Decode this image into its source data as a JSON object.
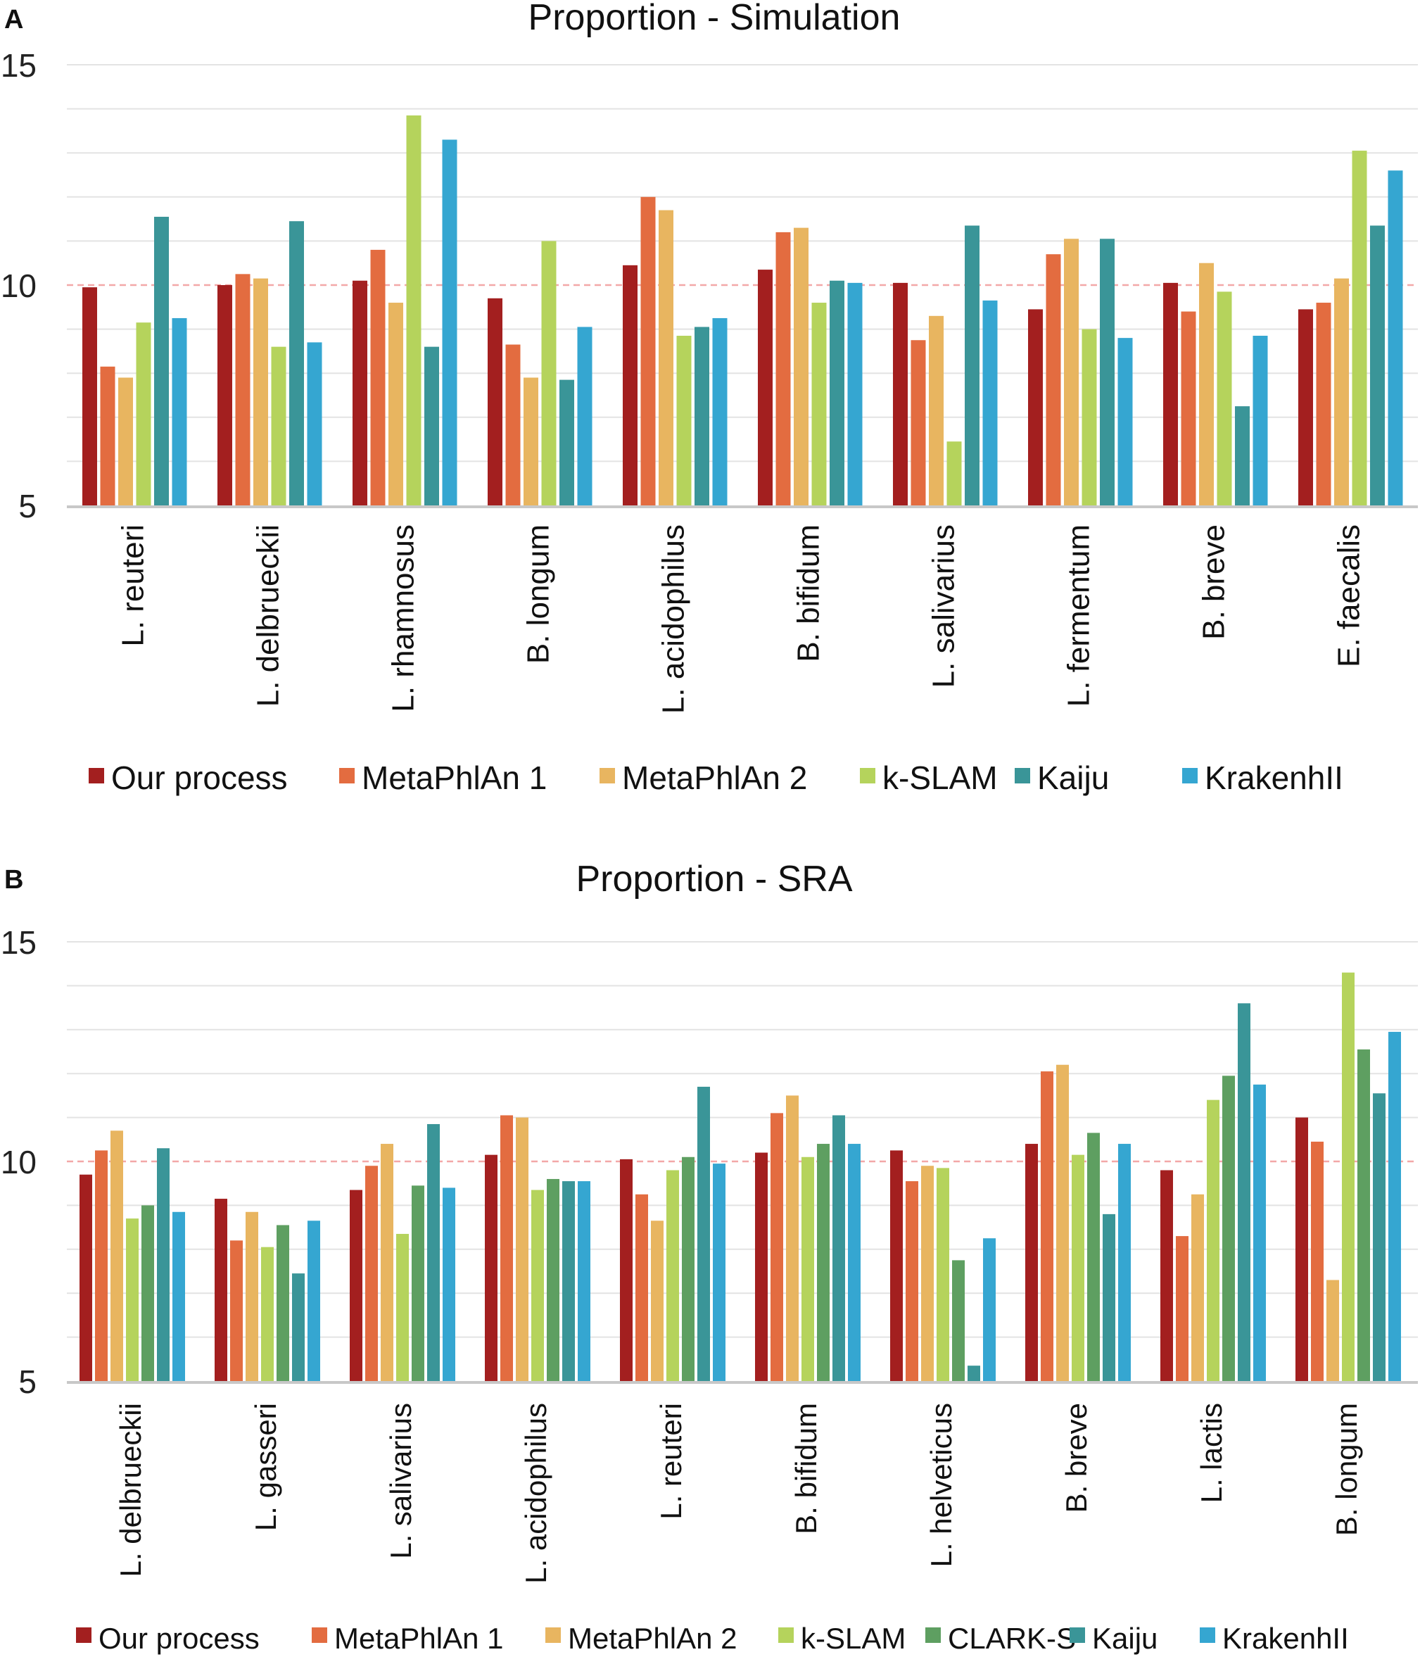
{
  "colors": {
    "series": [
      "#a31f1f",
      "#e36c40",
      "#e8b560",
      "#b5d35c",
      "#5e9f61",
      "#3a9598",
      "#35a6d1"
    ],
    "grid": "#e3e3e3",
    "axis": "#c8c8c8",
    "reference": "#f3a8a8"
  },
  "chart_data": [
    {
      "panel_label": "A",
      "type": "bar",
      "title": "Proportion - Simulation",
      "xlabel": "",
      "ylabel": "",
      "ylim": [
        5,
        15
      ],
      "yticks": [
        5,
        10,
        15
      ],
      "reference_line": 10,
      "grid": true,
      "legend_position": "bottom",
      "categories": [
        "L. reuteri",
        "L. delbrueckii",
        "L. rhamnosus",
        "B. longum",
        "L. acidophilus",
        "B. bifidum",
        "L. salivarius",
        "L. fermentum",
        "B. breve",
        "E. faecalis"
      ],
      "series": [
        {
          "name": "Our process",
          "color_index": 0,
          "values": [
            9.95,
            10.0,
            10.1,
            9.7,
            10.45,
            10.35,
            10.05,
            9.45,
            10.05,
            9.45
          ]
        },
        {
          "name": "MetaPhlAn 1",
          "color_index": 1,
          "values": [
            8.15,
            10.25,
            10.8,
            8.65,
            12.0,
            11.2,
            8.75,
            10.7,
            9.4,
            9.6
          ]
        },
        {
          "name": "MetaPhlAn 2",
          "color_index": 2,
          "values": [
            7.9,
            10.15,
            9.6,
            7.9,
            11.7,
            11.3,
            9.3,
            11.05,
            10.5,
            10.15
          ]
        },
        {
          "name": "k-SLAM",
          "color_index": 3,
          "values": [
            9.15,
            8.6,
            13.85,
            11.0,
            8.85,
            9.6,
            6.45,
            9.0,
            9.85,
            13.05
          ]
        },
        {
          "name": "Kaiju",
          "color_index": 5,
          "values": [
            11.55,
            11.45,
            8.6,
            7.85,
            9.05,
            10.1,
            11.35,
            11.05,
            7.25,
            11.35
          ]
        },
        {
          "name": "KrakenhII",
          "color_index": 6,
          "values": [
            9.25,
            8.7,
            13.3,
            9.05,
            9.25,
            10.05,
            9.65,
            8.8,
            8.85,
            12.6
          ]
        }
      ]
    },
    {
      "panel_label": "B",
      "type": "bar",
      "title": "Proportion - SRA",
      "xlabel": "",
      "ylabel": "",
      "ylim": [
        5,
        15
      ],
      "yticks": [
        5,
        10,
        15
      ],
      "reference_line": 10,
      "grid": true,
      "legend_position": "bottom",
      "categories": [
        "L. delbrueckii",
        "L. gasseri",
        "L. salivarius",
        "L. acidophilus",
        "L. reuteri",
        "B. bifidum",
        "L. helveticus",
        "B. breve",
        "L. lactis",
        "B. longum"
      ],
      "series": [
        {
          "name": "Our process",
          "color_index": 0,
          "values": [
            9.7,
            9.15,
            9.35,
            10.15,
            10.05,
            10.2,
            10.25,
            10.4,
            9.8,
            11.0
          ]
        },
        {
          "name": "MetaPhlAn 1",
          "color_index": 1,
          "values": [
            10.25,
            8.2,
            9.9,
            11.05,
            9.25,
            11.1,
            9.55,
            12.05,
            8.3,
            10.45
          ]
        },
        {
          "name": "MetaPhlAn 2",
          "color_index": 2,
          "values": [
            10.7,
            8.85,
            10.4,
            11.0,
            8.65,
            11.5,
            9.9,
            12.2,
            9.25,
            7.3
          ]
        },
        {
          "name": "k-SLAM",
          "color_index": 3,
          "values": [
            8.7,
            8.05,
            8.35,
            9.35,
            9.8,
            10.1,
            9.85,
            10.15,
            11.4,
            14.3
          ]
        },
        {
          "name": "CLARK-S",
          "color_index": 4,
          "values": [
            9.0,
            8.55,
            9.45,
            9.6,
            10.1,
            10.4,
            7.75,
            10.65,
            11.95,
            12.55
          ]
        },
        {
          "name": "Kaiju",
          "color_index": 5,
          "values": [
            10.3,
            7.45,
            10.85,
            9.55,
            11.7,
            11.05,
            5.35,
            8.8,
            13.6,
            11.55
          ]
        },
        {
          "name": "KrakenhII",
          "color_index": 6,
          "values": [
            8.85,
            8.65,
            9.4,
            9.55,
            9.95,
            10.4,
            8.25,
            10.4,
            11.75,
            12.95
          ]
        }
      ]
    }
  ]
}
